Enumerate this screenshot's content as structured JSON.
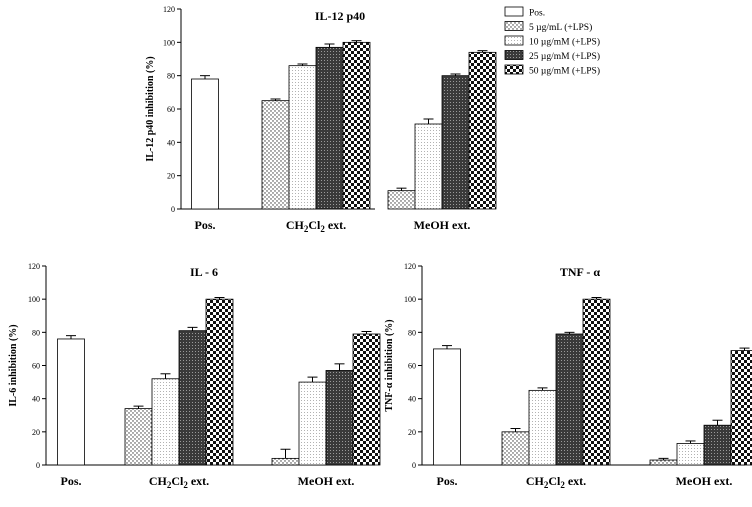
{
  "legend": {
    "items": [
      {
        "label": "Pos.",
        "pattern": "white"
      },
      {
        "label": "5  µg/mL (+LPS)",
        "pattern": "dots"
      },
      {
        "label": "10  µg/mM (+LPS)",
        "pattern": "fine"
      },
      {
        "label": "25  µg/mM (+LPS)",
        "pattern": "dark"
      },
      {
        "label": "50 µg/mM (+LPS)",
        "pattern": "checker"
      }
    ]
  },
  "chart_data": [
    {
      "type": "bar",
      "title": "IL-12 p40",
      "ylabel": "IL-12 p40 inhibition (%)",
      "ylim": [
        0,
        120
      ],
      "yticks": [
        "0",
        "20",
        "40",
        "60",
        "80",
        "100",
        "120"
      ],
      "categories": [
        {
          "base": "Pos.",
          "sub": ""
        },
        {
          "base": "CH",
          "sub": "2",
          "base2": "Cl",
          "sub2": "2",
          "tail": " ext."
        },
        {
          "base": "MeOH ext.",
          "sub": ""
        }
      ],
      "series": [
        {
          "name": "Pos.",
          "values": [
            78,
            null,
            null
          ],
          "errors": [
            2,
            null,
            null
          ]
        },
        {
          "name": "5  µg/mL (+LPS)",
          "values": [
            null,
            65,
            11
          ],
          "errors": [
            null,
            1,
            1.5
          ]
        },
        {
          "name": "10  µg/mM (+LPS)",
          "values": [
            null,
            86,
            51
          ],
          "errors": [
            null,
            1,
            3
          ]
        },
        {
          "name": "25  µg/mM (+LPS)",
          "values": [
            null,
            97,
            80
          ],
          "errors": [
            null,
            2,
            1
          ]
        },
        {
          "name": "50 µg/mM (+LPS)",
          "values": [
            null,
            100,
            94
          ],
          "errors": [
            null,
            1,
            1
          ]
        }
      ]
    },
    {
      "type": "bar",
      "title": "IL - 6",
      "ylabel": "IL-6 inhibition (%)",
      "ylim": [
        0,
        120
      ],
      "yticks": [
        "0",
        "20",
        "40",
        "60",
        "80",
        "100",
        "120"
      ],
      "categories": [
        {
          "base": "Pos.",
          "sub": ""
        },
        {
          "base": "CH",
          "sub": "2",
          "base2": "Cl",
          "sub2": "2",
          "tail": " ext."
        },
        {
          "base": "MeOH ext.",
          "sub": ""
        }
      ],
      "series": [
        {
          "name": "Pos.",
          "values": [
            76,
            null,
            null
          ],
          "errors": [
            2,
            null,
            null
          ]
        },
        {
          "name": "5  µg/mL (+LPS)",
          "values": [
            null,
            34,
            4
          ],
          "errors": [
            null,
            1.5,
            5.5
          ]
        },
        {
          "name": "10  µg/mM (+LPS)",
          "values": [
            null,
            52,
            50
          ],
          "errors": [
            null,
            3,
            3
          ]
        },
        {
          "name": "25  µg/mM (+LPS)",
          "values": [
            null,
            81,
            57
          ],
          "errors": [
            null,
            2,
            4
          ]
        },
        {
          "name": "50 µg/mM (+LPS)",
          "values": [
            null,
            100,
            79
          ],
          "errors": [
            null,
            1,
            1.5
          ]
        }
      ]
    },
    {
      "type": "bar",
      "title": "TNF - α",
      "ylabel": "TNF-α inhibition (%)",
      "ylim": [
        0,
        120
      ],
      "yticks": [
        "0",
        "20",
        "40",
        "60",
        "80",
        "100",
        "120"
      ],
      "categories": [
        {
          "base": "Pos.",
          "sub": ""
        },
        {
          "base": "CH",
          "sub": "2",
          "base2": "Cl",
          "sub2": "2",
          "tail": " ext."
        },
        {
          "base": "MeOH ext.",
          "sub": ""
        }
      ],
      "series": [
        {
          "name": "Pos.",
          "values": [
            70,
            null,
            null
          ],
          "errors": [
            2,
            null,
            null
          ]
        },
        {
          "name": "5  µg/mL (+LPS)",
          "values": [
            null,
            20,
            3
          ],
          "errors": [
            null,
            2,
            1
          ]
        },
        {
          "name": "10  µg/mM (+LPS)",
          "values": [
            null,
            45,
            13
          ],
          "errors": [
            null,
            1.5,
            1.5
          ]
        },
        {
          "name": "25  µg/mM (+LPS)",
          "values": [
            null,
            79,
            24
          ],
          "errors": [
            null,
            1,
            3
          ]
        },
        {
          "name": "50 µg/mM (+LPS)",
          "values": [
            null,
            100,
            69
          ],
          "errors": [
            null,
            1,
            1.5
          ]
        }
      ]
    }
  ]
}
